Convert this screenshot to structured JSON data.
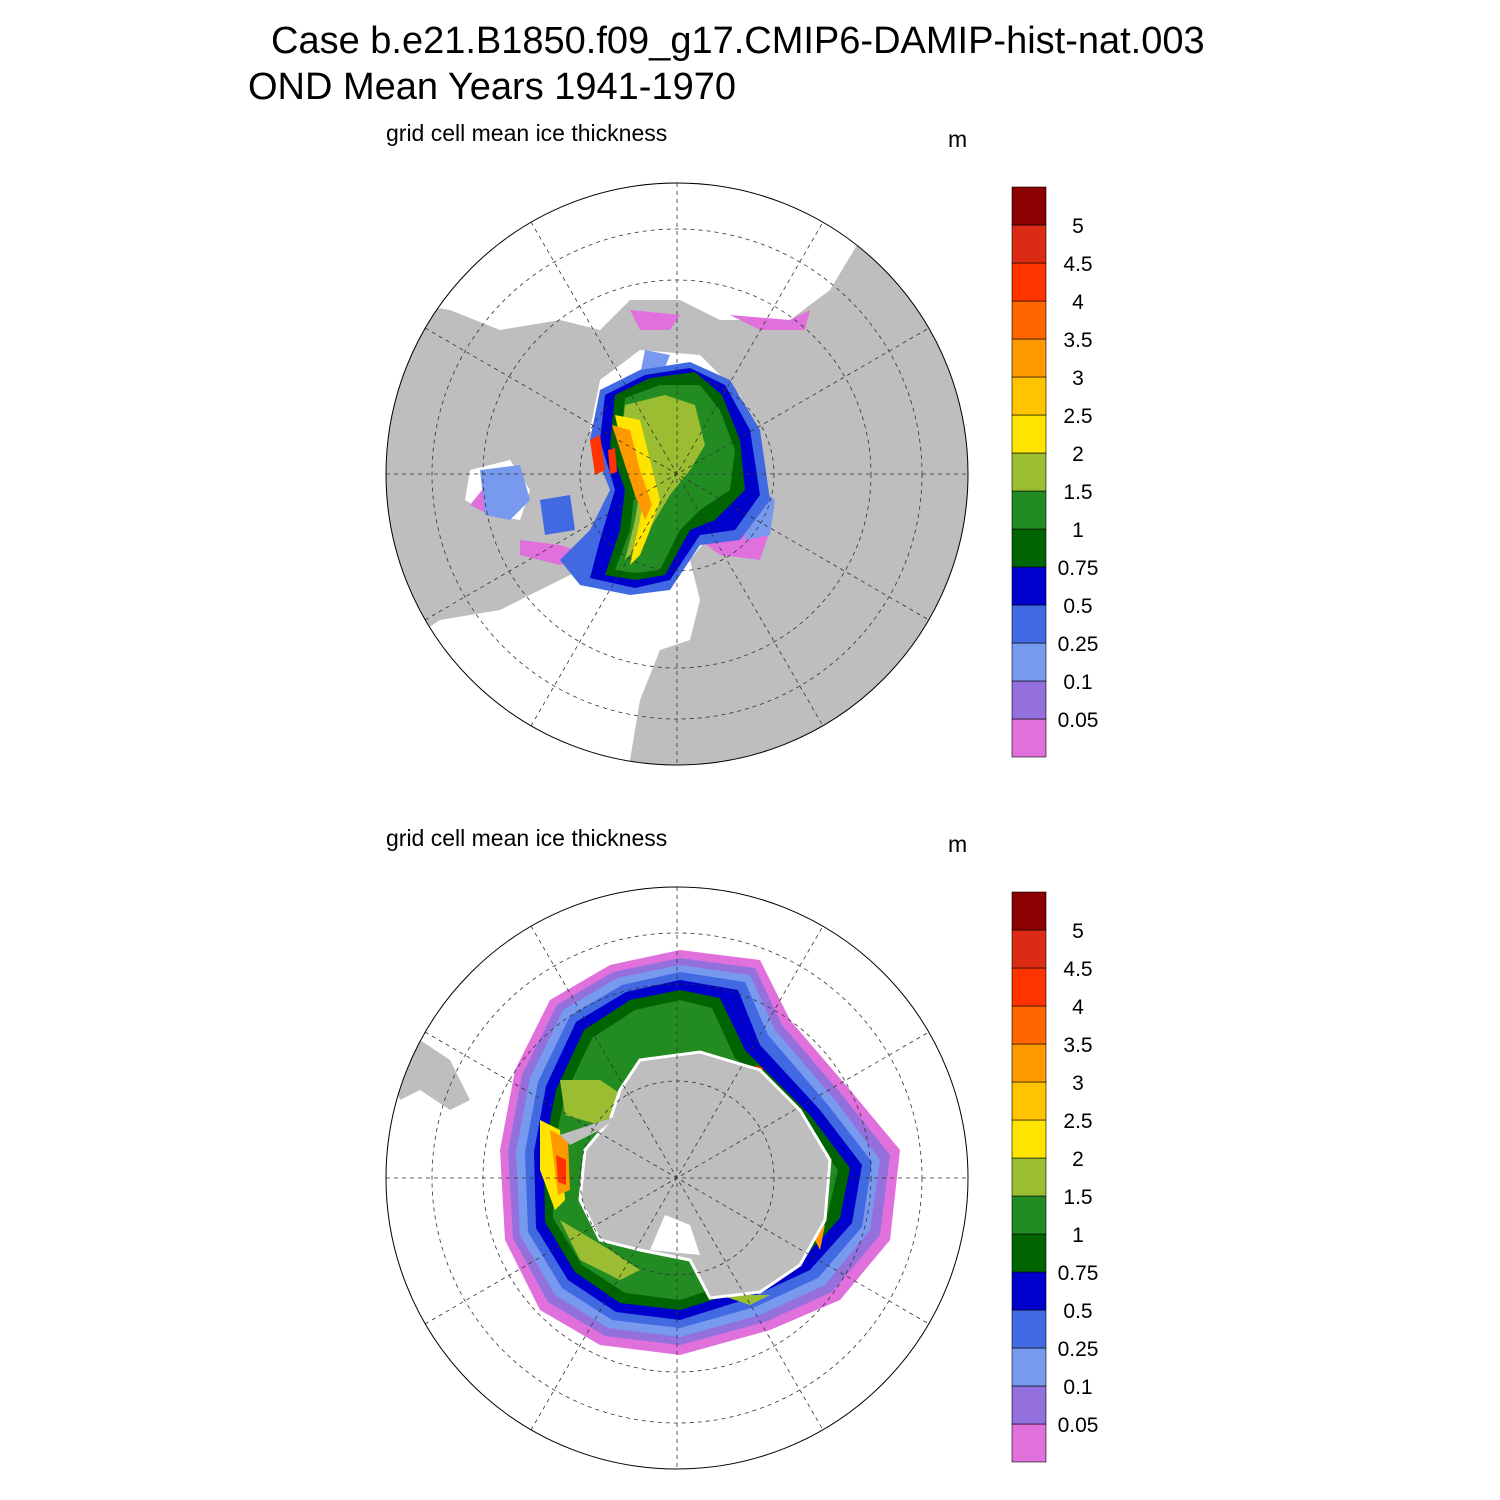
{
  "title": {
    "line1": "Case b.e21.B1850.f09_g17.CMIP6-DAMIP-hist-nat.003",
    "line2": "OND Mean   Years 1941-1970"
  },
  "panels": [
    {
      "name": "north",
      "subtitle": "grid cell mean ice thickness",
      "units": "m"
    },
    {
      "name": "south",
      "subtitle": "grid cell mean ice thickness",
      "units": "m"
    }
  ],
  "chart_data": {
    "type": "heatmap",
    "variable": "grid cell mean ice thickness",
    "units": "m",
    "colorbar": {
      "labels": [
        "0.05",
        "0.1",
        "0.25",
        "0.5",
        "0.75",
        "1",
        "1.5",
        "2",
        "2.5",
        "3",
        "3.5",
        "4",
        "4.5",
        "5"
      ],
      "colors": [
        "#E070DC",
        "#9370DB",
        "#7799EE",
        "#4169E1",
        "#0000CD",
        "#006400",
        "#228B22",
        "#9ABD31",
        "#FFE400",
        "#FFC300",
        "#FF9900",
        "#FF6600",
        "#FF3300",
        "#DC2B14",
        "#8B0000"
      ]
    },
    "land_color": "#BEBEBE"
  }
}
